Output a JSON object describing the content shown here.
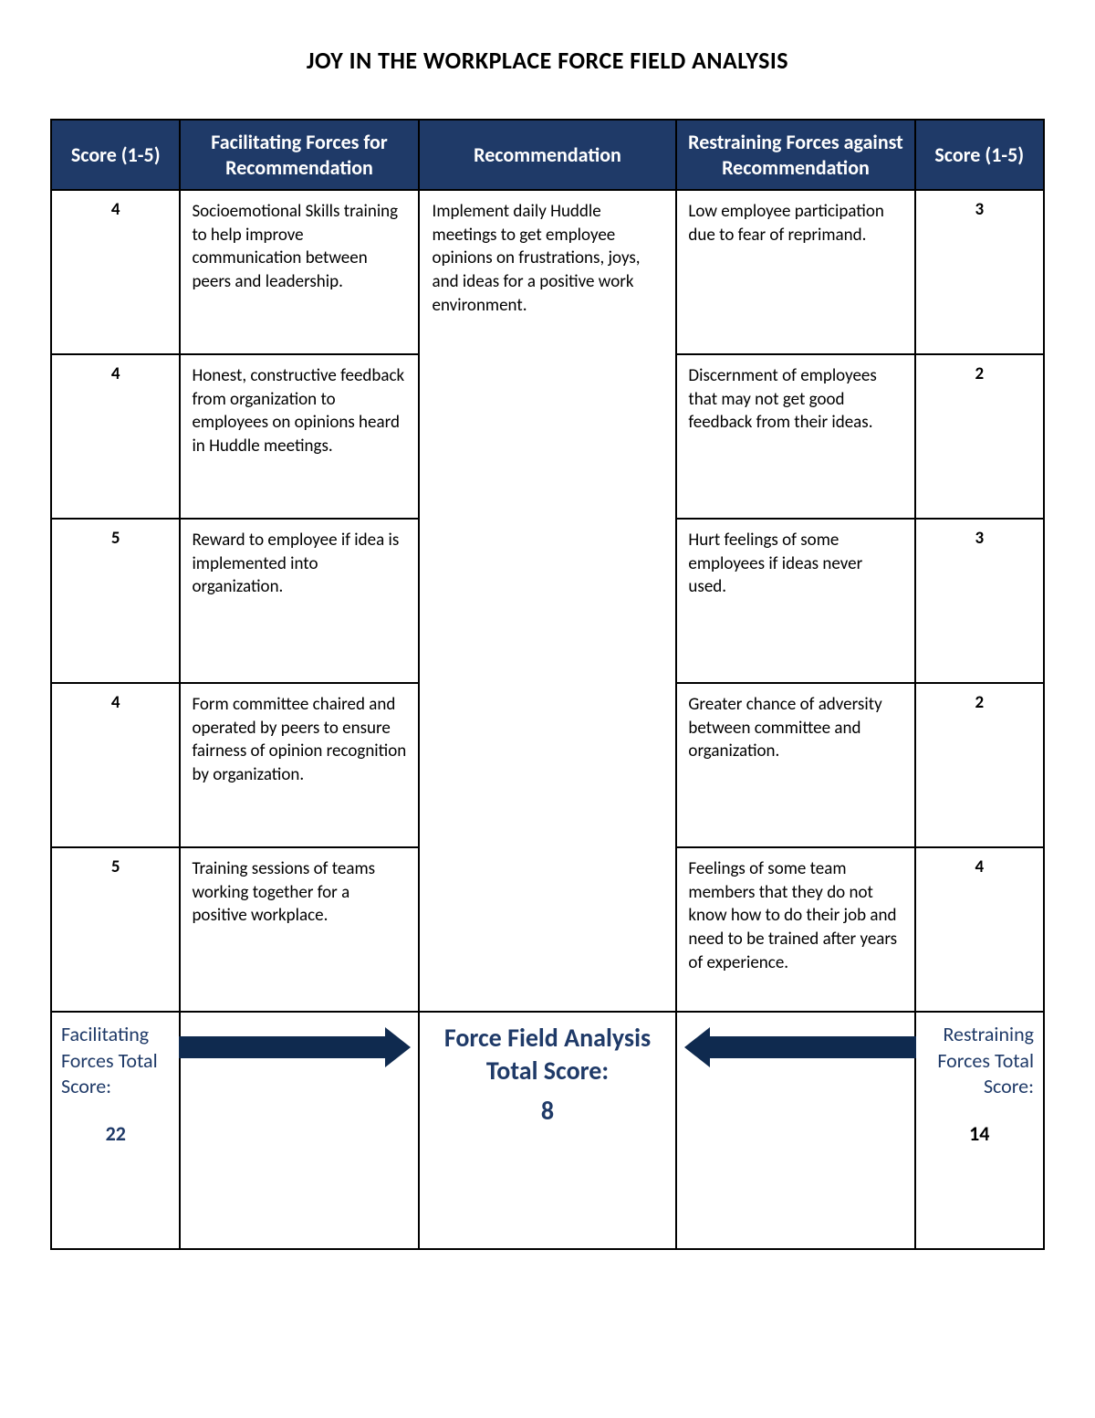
{
  "title": "JOY IN THE WORKPLACE FORCE FIELD ANALYSIS",
  "table": {
    "type": "table",
    "columns": [
      "Score (1-5)",
      "Facilitating Forces for Recommendation",
      "Recommendation",
      "Restraining Forces against Recommendation",
      "Score (1-5)"
    ],
    "column_widths_pct": [
      13,
      24,
      26,
      24,
      13
    ],
    "header_bg": "#1f3a68",
    "header_text_color": "#ffffff",
    "border_color": "#000000",
    "background_color": "#ffffff",
    "body_fontsize": 19,
    "header_fontsize": 22,
    "recommendation": "Implement daily Huddle meetings to get employee opinions on frustrations, joys, and ideas for a positive work environment.",
    "rows": [
      {
        "score_left": "4",
        "facilitating": "Socioemotional Skills training to help improve communication between peers and leadership.",
        "restraining": "Low employee participation due to fear of reprimand.",
        "score_right": "3"
      },
      {
        "score_left": "4",
        "facilitating": "Honest, constructive feedback from organization to employees on opinions heard in Huddle meetings.",
        "restraining": "Discernment of employees that may not get good feedback from their ideas.",
        "score_right": "2"
      },
      {
        "score_left": "5",
        "facilitating": "Reward to employee if idea is implemented into organization.",
        "restraining": "Hurt feelings of some employees if ideas never used.",
        "score_right": "3"
      },
      {
        "score_left": "4",
        "facilitating": "Form committee chaired and operated by peers to ensure fairness of opinion recognition by organization.",
        "restraining": "Greater chance of adversity between committee and organization.",
        "score_right": "2"
      },
      {
        "score_left": "5",
        "facilitating": "Training sessions of teams working together for a positive workplace.",
        "restraining": "Feelings of some team members that they do not know how to do their job and need to be trained after years of experience.",
        "score_right": "4"
      }
    ],
    "totals": {
      "left_label": "Facilitating Forces Total Score:",
      "left_score": "22",
      "center_label": "Force Field Analysis Total Score:",
      "center_score": "8",
      "right_label": "Restraining Forces Total Score:",
      "right_score": "14",
      "label_color_left": "#1f3a68",
      "label_color_right": "#1f3a68",
      "center_color": "#1f3a68",
      "arrow_color": "#0f2a4f",
      "center_fontsize": 28,
      "label_fontsize": 22
    }
  }
}
